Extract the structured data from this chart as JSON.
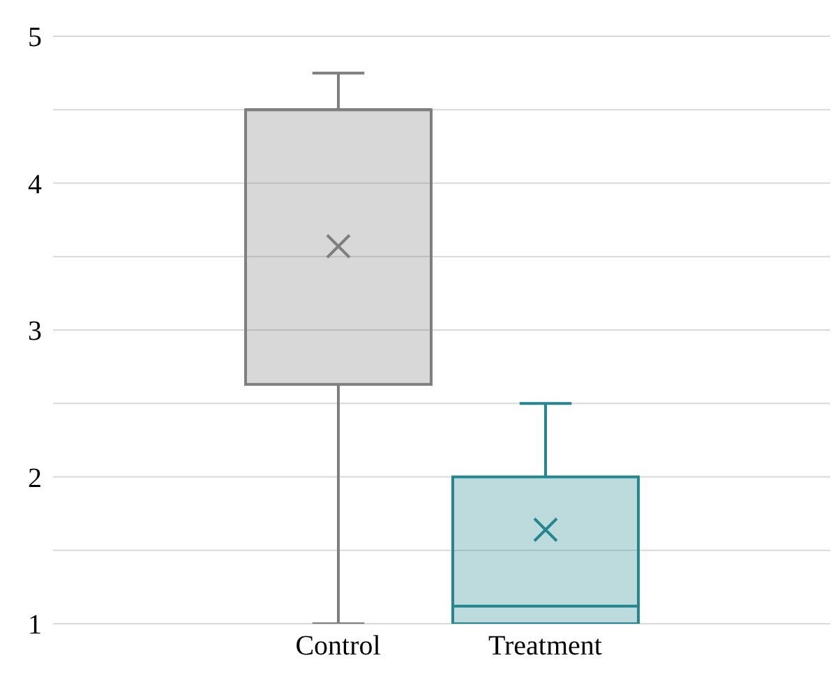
{
  "chart_data": {
    "type": "box",
    "categories": [
      "Control",
      "Treatment"
    ],
    "boxes": [
      {
        "low": 1,
        "q1": 2.63,
        "median": 4.5,
        "q3": 4.5,
        "high": 4.75,
        "mean": 3.57
      },
      {
        "low": 1,
        "q1": 1,
        "median": 1.12,
        "q3": 2,
        "high": 2.5,
        "mean": 1.64
      }
    ],
    "colors": [
      "#7f7f7f",
      "#24868f"
    ],
    "ylim": [
      1,
      5
    ],
    "yticks": [
      1,
      {
        "value": 1.5,
        "label": null
      },
      2,
      {
        "value": 2.5,
        "label": null
      },
      3,
      {
        "value": 3.5,
        "label": null
      },
      4,
      {
        "value": 4.5,
        "label": null
      },
      5
    ],
    "grid": "y",
    "marker": "cross"
  }
}
